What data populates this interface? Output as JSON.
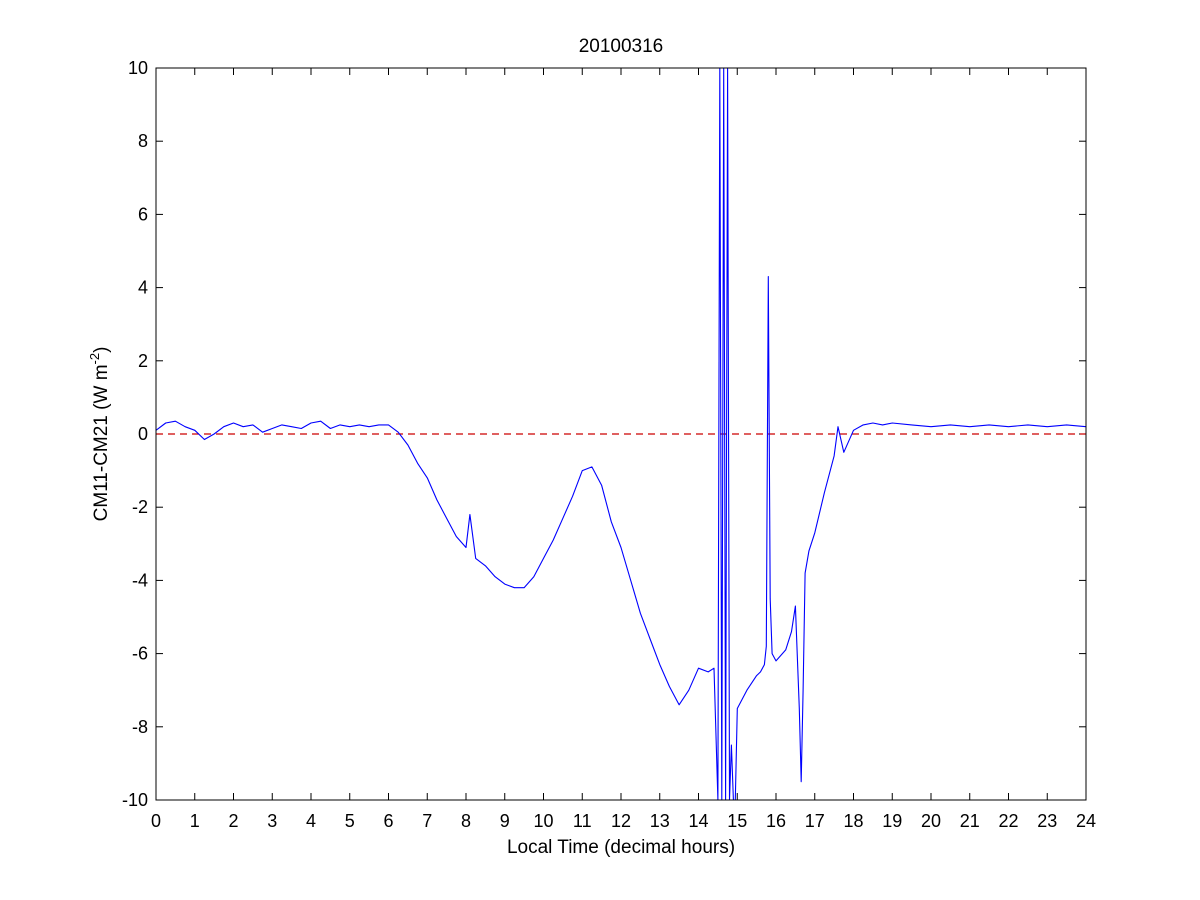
{
  "chart_data": {
    "type": "line",
    "title": "20100316",
    "xlabel": "Local Time (decimal hours)",
    "ylabel": {
      "prefix": "CM11-CM21 (W m",
      "superscript": "-2",
      "suffix": ")"
    },
    "xlim": [
      0,
      24
    ],
    "ylim": [
      -10,
      10
    ],
    "xticks": [
      0,
      1,
      2,
      3,
      4,
      5,
      6,
      7,
      8,
      9,
      10,
      11,
      12,
      13,
      14,
      15,
      16,
      17,
      18,
      19,
      20,
      21,
      22,
      23,
      24
    ],
    "yticks": [
      -10,
      -8,
      -6,
      -4,
      -2,
      0,
      2,
      4,
      6,
      8,
      10
    ],
    "grid": false,
    "series": [
      {
        "color": "#0000ff",
        "x": [
          0.0,
          0.25,
          0.5,
          0.75,
          1.0,
          1.25,
          1.5,
          1.75,
          2.0,
          2.25,
          2.5,
          2.75,
          3.0,
          3.25,
          3.5,
          3.75,
          4.0,
          4.25,
          4.5,
          4.75,
          5.0,
          5.25,
          5.5,
          5.75,
          6.0,
          6.25,
          6.5,
          6.75,
          7.0,
          7.25,
          7.5,
          7.75,
          8.0,
          8.1,
          8.25,
          8.5,
          8.75,
          9.0,
          9.25,
          9.5,
          9.75,
          10.0,
          10.25,
          10.5,
          10.75,
          11.0,
          11.25,
          11.5,
          11.75,
          12.0,
          12.25,
          12.5,
          12.75,
          13.0,
          13.25,
          13.5,
          13.75,
          14.0,
          14.25,
          14.4,
          14.5,
          14.55,
          14.6,
          14.65,
          14.7,
          14.75,
          14.8,
          14.85,
          14.9,
          14.95,
          15.0,
          15.25,
          15.5,
          15.6,
          15.7,
          15.75,
          15.8,
          15.85,
          15.9,
          16.0,
          16.25,
          16.4,
          16.5,
          16.6,
          16.65,
          16.7,
          16.75,
          16.85,
          17.0,
          17.25,
          17.5,
          17.6,
          17.75,
          18.0,
          18.25,
          18.5,
          18.75,
          19.0,
          19.5,
          20.0,
          20.5,
          21.0,
          21.5,
          22.0,
          22.5,
          23.0,
          23.5,
          24.0
        ],
        "y": [
          0.1,
          0.3,
          0.35,
          0.2,
          0.1,
          -0.15,
          0.0,
          0.2,
          0.3,
          0.2,
          0.25,
          0.05,
          0.15,
          0.25,
          0.2,
          0.15,
          0.3,
          0.35,
          0.15,
          0.25,
          0.2,
          0.25,
          0.2,
          0.25,
          0.25,
          0.05,
          -0.3,
          -0.8,
          -1.2,
          -1.8,
          -2.3,
          -2.8,
          -3.1,
          -2.2,
          -3.4,
          -3.6,
          -3.9,
          -4.1,
          -4.2,
          -4.2,
          -3.9,
          -3.4,
          -2.9,
          -2.3,
          -1.7,
          -1.0,
          -0.9,
          -1.4,
          -2.4,
          -3.1,
          -4.0,
          -4.9,
          -5.6,
          -6.3,
          -6.9,
          -7.4,
          -7.0,
          -6.4,
          -6.5,
          -6.4,
          -10.0,
          10.0,
          -10.0,
          10.0,
          -10.0,
          10.0,
          -10.0,
          -8.5,
          -10.0,
          -10.0,
          -7.5,
          -7.0,
          -6.6,
          -6.5,
          -6.3,
          -5.8,
          4.3,
          -4.5,
          -6.0,
          -6.2,
          -5.9,
          -5.4,
          -4.7,
          -7.5,
          -9.5,
          -7.0,
          -3.8,
          -3.2,
          -2.7,
          -1.6,
          -0.6,
          0.2,
          -0.5,
          0.1,
          0.25,
          0.3,
          0.25,
          0.3,
          0.25,
          0.2,
          0.25,
          0.2,
          0.25,
          0.2,
          0.25,
          0.2,
          0.25,
          0.2
        ]
      }
    ],
    "reference_line": {
      "y": 0,
      "color": "#cc0000",
      "style": "dashed"
    }
  }
}
